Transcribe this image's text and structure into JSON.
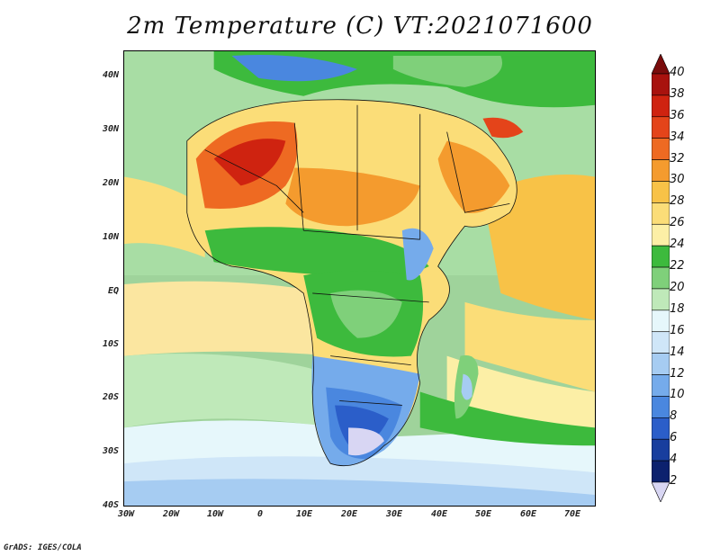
{
  "title": "2m Temperature (C) VT:2021071600",
  "credit": "GrADS: IGES/COLA",
  "map": {
    "lat_labels": [
      "40N",
      "30N",
      "20N",
      "10N",
      "EQ",
      "10S",
      "20S",
      "30S",
      "40S"
    ],
    "lon_labels": [
      "30W",
      "20W",
      "10W",
      "0",
      "10E",
      "20E",
      "30E",
      "40E",
      "50E",
      "60E",
      "70E"
    ]
  },
  "colorbar": {
    "labels": [
      "40",
      "38",
      "36",
      "34",
      "32",
      "30",
      "28",
      "26",
      "24",
      "22",
      "20",
      "18",
      "16",
      "14",
      "12",
      "10",
      "8",
      "6",
      "4",
      "2"
    ],
    "colors": [
      "#7a0c0c",
      "#a8120e",
      "#cf2310",
      "#e4441a",
      "#ee6a22",
      "#f49b2e",
      "#f8c247",
      "#fbdd78",
      "#fcefa6",
      "#3dba3d",
      "#7fd07a",
      "#bfe9b9",
      "#e6f7fb",
      "#cfe6f8",
      "#a6ccf2",
      "#75abeb",
      "#4a87df",
      "#2b5ec9",
      "#183e9e",
      "#0c216e",
      "#d8d6f3"
    ]
  }
}
